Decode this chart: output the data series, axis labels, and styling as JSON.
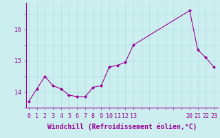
{
  "x": [
    0,
    1,
    2,
    3,
    4,
    5,
    6,
    7,
    8,
    9,
    10,
    11,
    12,
    13,
    20,
    21,
    22,
    23
  ],
  "y": [
    13.7,
    14.1,
    14.5,
    14.2,
    14.1,
    13.9,
    13.85,
    13.85,
    14.15,
    14.2,
    14.8,
    14.85,
    14.95,
    15.5,
    16.6,
    15.35,
    15.1,
    14.8
  ],
  "line_color": "#990099",
  "marker": "D",
  "marker_size": 2,
  "bg_color": "#cceeee",
  "grid_color": "#aadddd",
  "axis_color": "#990099",
  "xlabel": "Windchill (Refroidissement éolien,°C)",
  "xlabel_fontsize": 7,
  "tick_fontsize": 6,
  "ytick_labels": [
    "14",
    "15",
    "16"
  ],
  "ytick_values": [
    14,
    15,
    16
  ],
  "xtick_positions": [
    0,
    1,
    2,
    3,
    4,
    5,
    6,
    7,
    8,
    9,
    10,
    11,
    12,
    13,
    20,
    21,
    22,
    23
  ],
  "xtick_labels": [
    "0",
    "1",
    "2",
    "3",
    "4",
    "5",
    "6",
    "7",
    "8",
    "9",
    "10",
    "11",
    "12",
    "13",
    "20",
    "21",
    "22",
    "23"
  ],
  "grid_xticks": [
    0,
    1,
    2,
    3,
    4,
    5,
    6,
    7,
    8,
    9,
    10,
    11,
    12,
    13,
    14,
    15,
    16,
    17,
    18,
    19,
    20,
    21,
    22,
    23
  ],
  "ylim": [
    13.5,
    16.85
  ],
  "xlim": [
    -0.3,
    23.5
  ]
}
